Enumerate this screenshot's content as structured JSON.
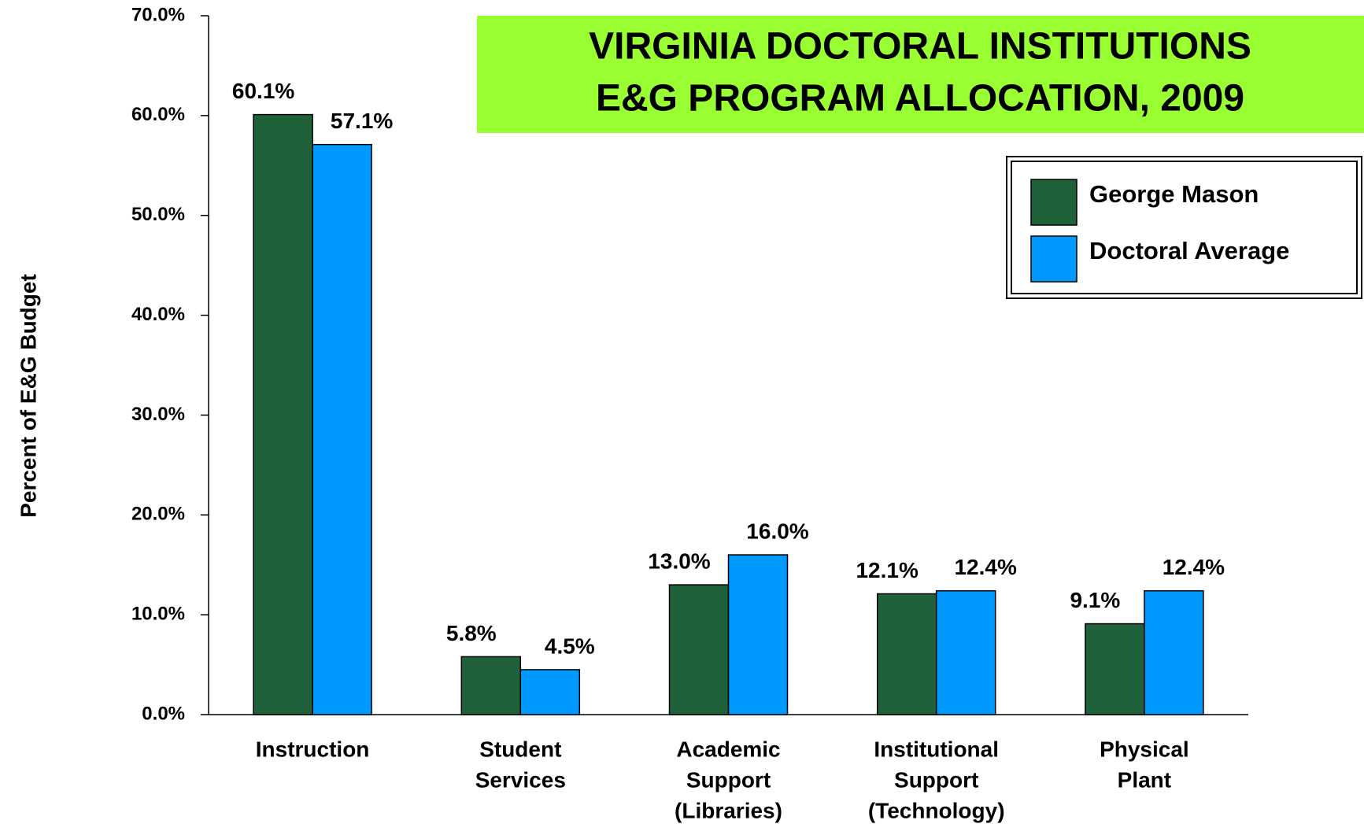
{
  "chart_data": {
    "type": "bar",
    "title": [
      "VIRGINIA DOCTORAL INSTITUTIONS",
      "E&G PROGRAM ALLOCATION, 2009"
    ],
    "y_label": "Percent of E&G Budget",
    "categories": [
      [
        "Instruction"
      ],
      [
        "Student",
        "Services"
      ],
      [
        "Academic",
        "Support",
        "(Libraries)"
      ],
      [
        "Institutional",
        "Support",
        "(Technology)"
      ],
      [
        "Physical",
        "Plant"
      ]
    ],
    "series": [
      {
        "name": "George Mason",
        "color": "#1f623a",
        "values": [
          60.1,
          5.8,
          13.0,
          12.1,
          9.1
        ],
        "value_labels": [
          "60.1%",
          "5.8%",
          "13.0%",
          "12.1%",
          "9.1%"
        ]
      },
      {
        "name": "Doctoral Average",
        "color": "#0099ff",
        "values": [
          57.1,
          4.5,
          16.0,
          12.4,
          12.4
        ],
        "value_labels": [
          "57.1%",
          "4.5%",
          "16.0%",
          "12.4%",
          "12.4%"
        ]
      }
    ],
    "ylim": [
      0,
      70
    ],
    "yticks": [
      {
        "value": 0,
        "label": "0.0%"
      },
      {
        "value": 10,
        "label": "10.0%"
      },
      {
        "value": 20,
        "label": "20.0%"
      },
      {
        "value": 30,
        "label": "30.0%"
      },
      {
        "value": 40,
        "label": "40.0%"
      },
      {
        "value": 50,
        "label": "50.0%"
      },
      {
        "value": 60,
        "label": "60.0%"
      },
      {
        "value": 70,
        "label": "70.0%"
      }
    ],
    "legend": "top-right"
  }
}
